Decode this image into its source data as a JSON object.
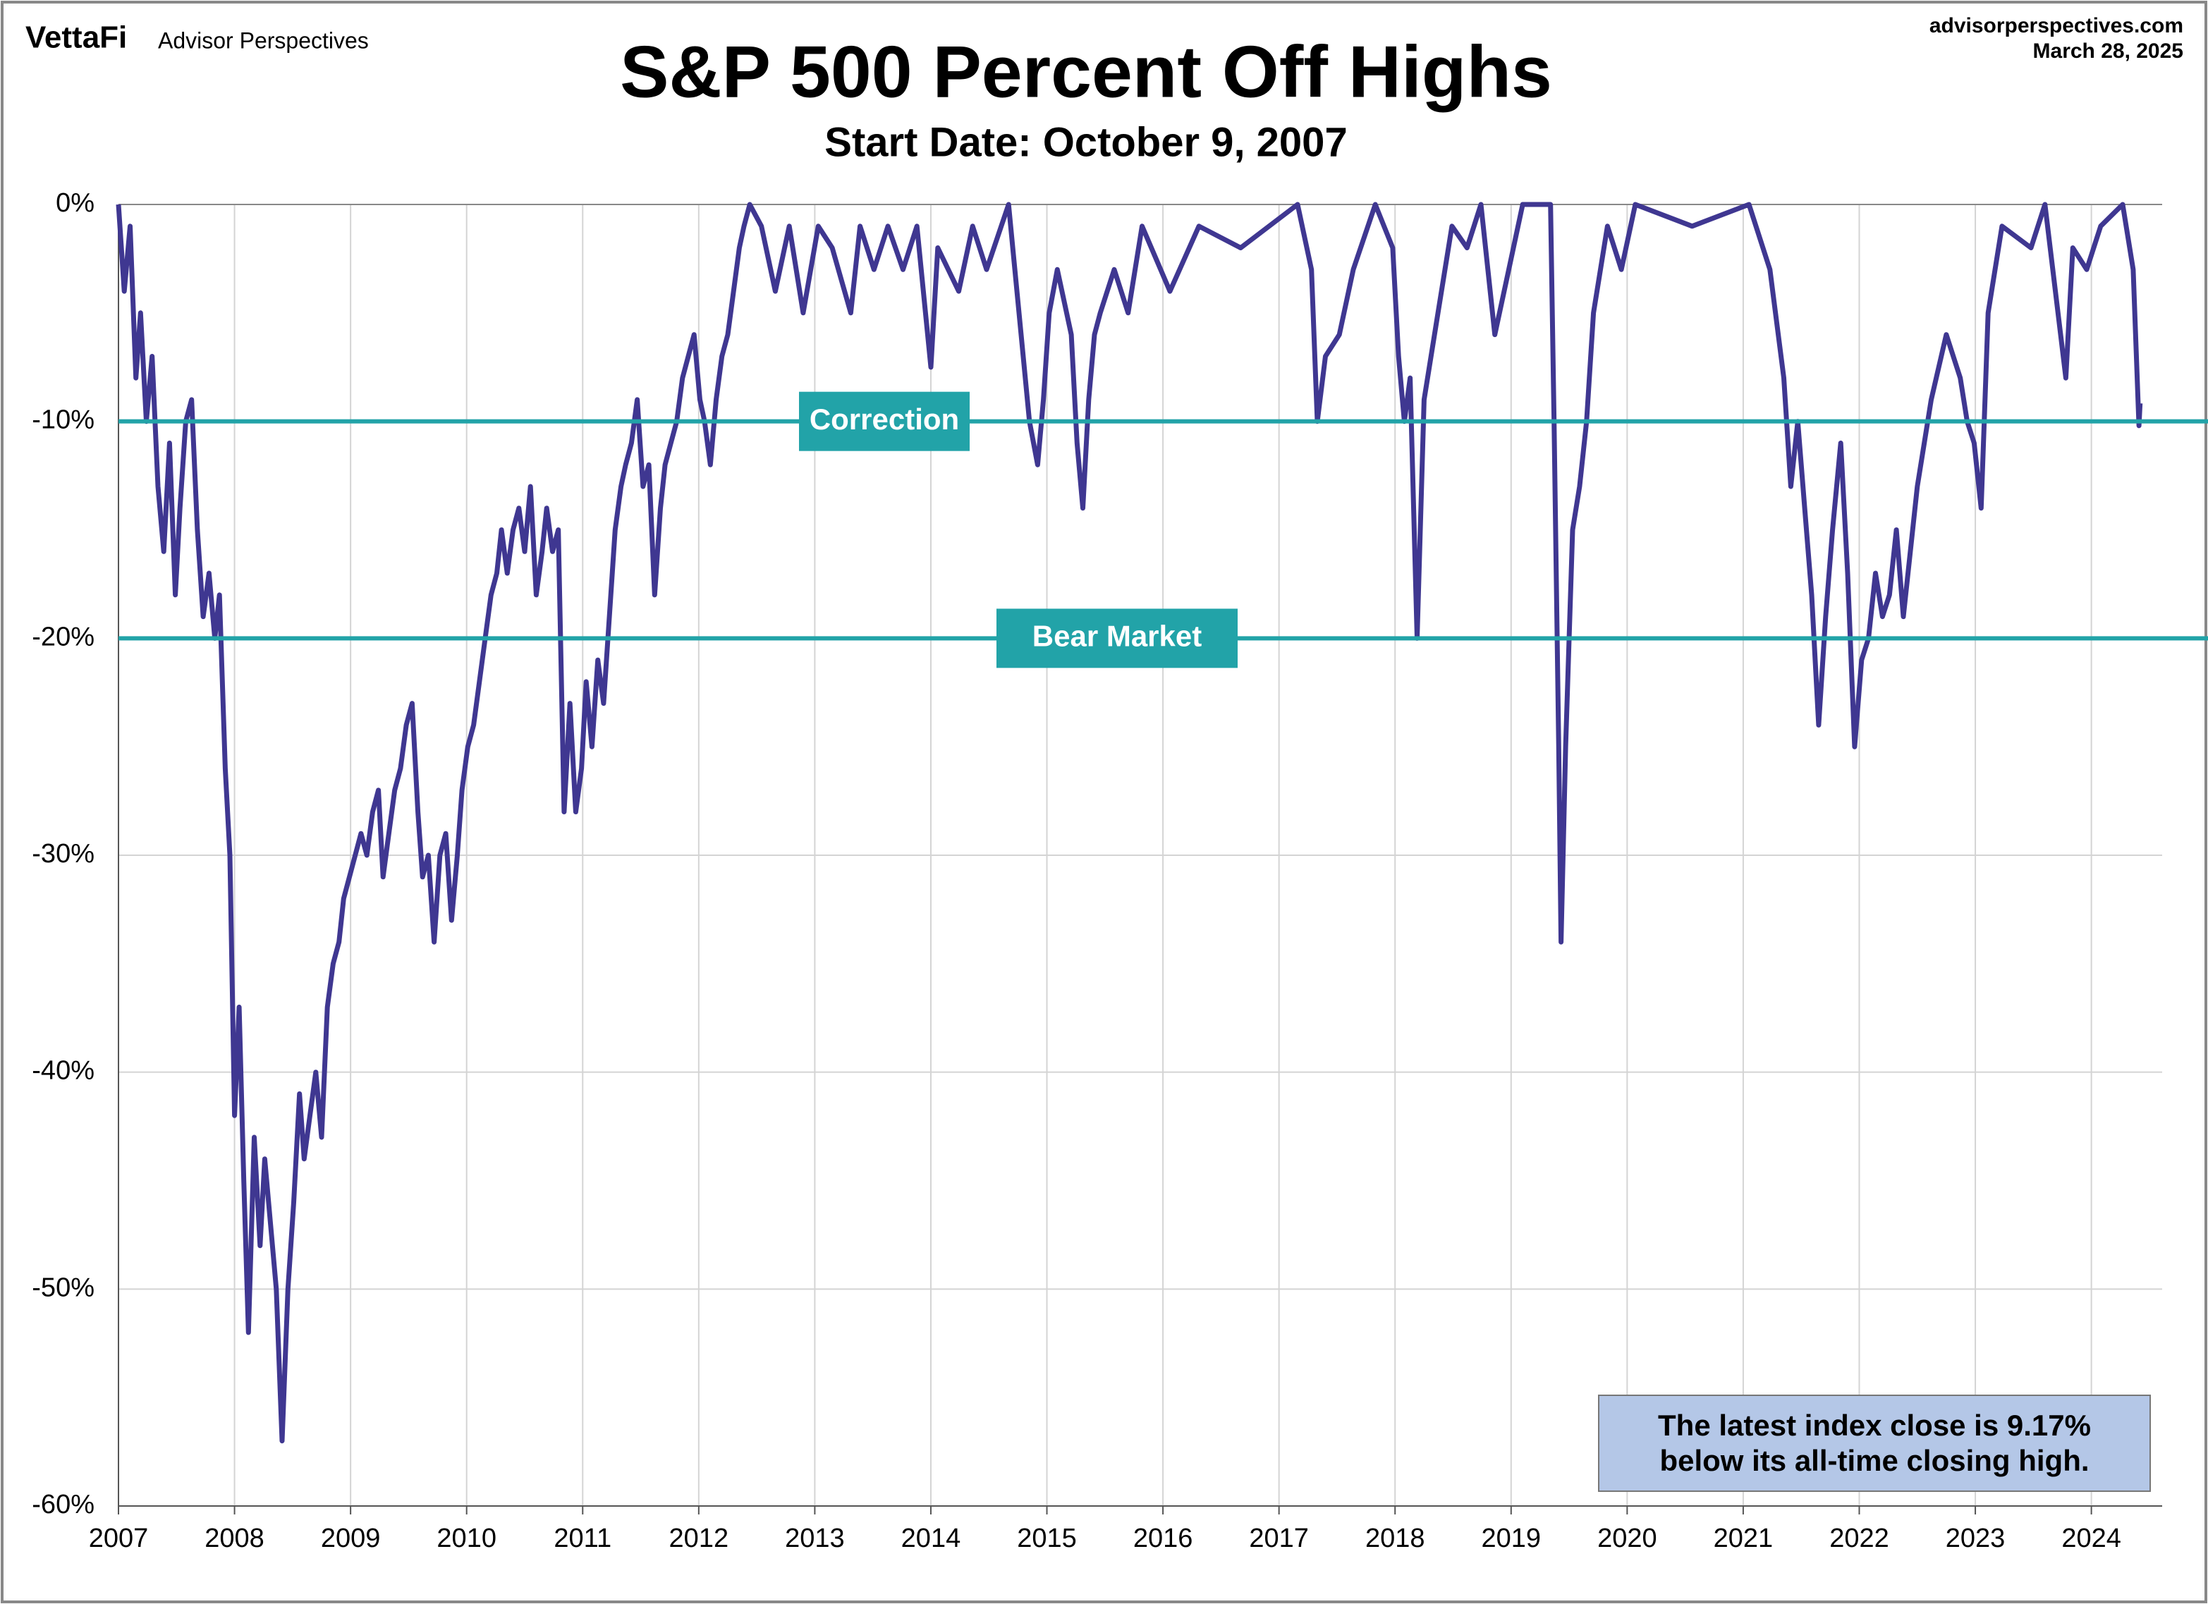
{
  "chart_data": {
    "type": "line",
    "title": "S&P 500 Percent Off Highs",
    "subtitle": "Start Date: October 9, 2007",
    "brand": "VettaFi",
    "publisher": "Advisor Perspectives",
    "source": "advisorperspectives.com",
    "date": "March 28, 2025",
    "note": "The latest index close is 9.17% below its all-time closing high.",
    "x": [
      2007.0,
      2007.05,
      2007.1,
      2007.15,
      2007.19,
      2007.24,
      2007.29,
      2007.34,
      2007.39,
      2007.44,
      2007.49,
      2007.53,
      2007.58,
      2007.63,
      2007.68,
      2007.73,
      2007.78,
      2007.83,
      2007.87,
      2007.92,
      2007.96,
      2008.0,
      2008.04,
      2008.08,
      2008.12,
      2008.17,
      2008.22,
      2008.26,
      2008.31,
      2008.36,
      2008.41,
      2008.46,
      2008.51,
      2008.56,
      2008.6,
      2008.65,
      2008.7,
      2008.75,
      2008.8,
      2008.85,
      2008.9,
      2008.94,
      2008.99,
      2009.04,
      2009.09,
      2009.14,
      2009.19,
      2009.24,
      2009.28,
      2009.33,
      2009.38,
      2009.43,
      2009.48,
      2009.53,
      2009.58,
      2009.62,
      2009.67,
      2009.72,
      2009.77,
      2009.82,
      2009.87,
      2009.92,
      2009.96,
      2010.01,
      2010.06,
      2010.11,
      2010.16,
      2010.21,
      2010.26,
      2010.3,
      2010.35,
      2010.4,
      2010.45,
      2010.5,
      2010.55,
      2010.6,
      2010.65,
      2010.69,
      2010.74,
      2010.79,
      2010.84,
      2010.89,
      2010.94,
      2010.99,
      2011.03,
      2011.08,
      2011.13,
      2011.18,
      2011.23,
      2011.28,
      2011.33,
      2011.37,
      2011.42,
      2011.47,
      2011.52,
      2011.57,
      2011.62,
      2011.67,
      2011.71,
      2011.76,
      2011.81,
      2011.86,
      2011.91,
      2011.96,
      2012.01,
      2012.05,
      2012.1,
      2012.15,
      2012.2,
      2012.25,
      2012.3,
      2012.35,
      2012.39,
      2012.44,
      2012.54,
      2012.66,
      2012.78,
      2012.9,
      2013.03,
      2013.15,
      2013.31,
      2013.39,
      2013.51,
      2013.63,
      2013.76,
      2013.88,
      2014.0,
      2014.06,
      2014.24,
      2014.36,
      2014.48,
      2014.67,
      2014.85,
      2014.92,
      2014.97,
      2015.02,
      2015.09,
      2015.21,
      2015.26,
      2015.31,
      2015.36,
      2015.41,
      2015.46,
      2015.58,
      2015.7,
      2015.82,
      2016.06,
      2016.31,
      2016.67,
      2017.16,
      2017.28,
      2017.33,
      2017.4,
      2017.52,
      2017.64,
      2017.83,
      2017.98,
      2018.03,
      2018.08,
      2018.13,
      2018.19,
      2018.25,
      2018.37,
      2018.49,
      2018.62,
      2018.74,
      2018.86,
      2018.98,
      2019.1,
      2019.34,
      2019.37,
      2019.41,
      2019.43,
      2019.47,
      2019.53,
      2019.59,
      2019.65,
      2019.71,
      2019.83,
      2019.95,
      2020.07,
      2020.56,
      2021.05,
      2021.23,
      2021.35,
      2021.41,
      2021.47,
      2021.53,
      2021.59,
      2021.65,
      2021.71,
      2021.77,
      2021.84,
      2021.9,
      2021.96,
      2022.02,
      2022.08,
      2022.14,
      2022.2,
      2022.26,
      2022.32,
      2022.38,
      2022.44,
      2022.5,
      2022.62,
      2022.75,
      2022.87,
      2022.93,
      2022.99,
      2023.05,
      2023.11,
      2023.23,
      2023.48,
      2023.6,
      2023.78,
      2023.84,
      2023.96,
      2024.08,
      2024.27,
      2024.36,
      2024.41,
      2024.42
    ],
    "series": [
      {
        "name": "S&P 500 Percent Off Highs",
        "color": "#3f3791",
        "values": [
          0,
          -4,
          -1,
          -8,
          -5,
          -10,
          -7,
          -13,
          -16,
          -11,
          -18,
          -14,
          -10,
          -9,
          -15,
          -19,
          -17,
          -20,
          -18,
          -26,
          -30,
          -42,
          -37,
          -45,
          -52,
          -43,
          -48,
          -44,
          -47,
          -50,
          -57,
          -50,
          -46,
          -41,
          -44,
          -42,
          -40,
          -43,
          -37,
          -35,
          -34,
          -32,
          -31,
          -30,
          -29,
          -30,
          -28,
          -27,
          -31,
          -29,
          -27,
          -26,
          -24,
          -23,
          -28,
          -31,
          -30,
          -34,
          -30,
          -29,
          -33,
          -30,
          -27,
          -25,
          -24,
          -22,
          -20,
          -18,
          -17,
          -15,
          -17,
          -15,
          -14,
          -16,
          -13,
          -18,
          -16,
          -14,
          -16,
          -15,
          -28,
          -23,
          -28,
          -26,
          -22,
          -25,
          -21,
          -23,
          -19,
          -15,
          -13,
          -12,
          -11,
          -9,
          -13,
          -12,
          -18,
          -14,
          -12,
          -11,
          -10,
          -8,
          -7,
          -6,
          -9,
          -10,
          -12,
          -9,
          -7,
          -6,
          -4,
          -2,
          -1,
          0,
          -1,
          -4,
          -1,
          -5,
          -1,
          -2,
          -5,
          -1,
          -3,
          -1,
          -3,
          -1,
          -7.5,
          -2,
          -4,
          -1,
          -3,
          0,
          -10,
          -12,
          -9,
          -5,
          -3,
          -6,
          -11,
          -14,
          -9,
          -6,
          -5,
          -3,
          -5,
          -1,
          -4,
          -1,
          -2,
          0,
          -3,
          -10,
          -7,
          -6,
          -3,
          0,
          -2,
          -7,
          -10,
          -8,
          -20,
          -9,
          -5,
          -1,
          -2,
          0,
          -6,
          -3,
          0,
          0,
          -10,
          -25,
          -34,
          -25,
          -15,
          -13,
          -10,
          -5,
          -1,
          -3,
          0,
          -1,
          0,
          -3,
          -8,
          -13,
          -10,
          -14,
          -18,
          -24,
          -19,
          -15,
          -11,
          -17,
          -25,
          -21,
          -20,
          -17,
          -19,
          -18,
          -15,
          -19,
          -16,
          -13,
          -9,
          -6,
          -8,
          -10,
          -11,
          -14,
          -5,
          -1,
          -2,
          0,
          -8,
          -2,
          -3,
          -1,
          0,
          -3,
          -10.2,
          -9.17
        ]
      }
    ],
    "xlim": [
      2007,
      2024.61
    ],
    "xticks": [
      2007,
      2008,
      2009,
      2010,
      2011,
      2012,
      2013,
      2014,
      2015,
      2016,
      2017,
      2018,
      2019,
      2020,
      2021,
      2022,
      2023,
      2024
    ],
    "ylim": [
      -60,
      0
    ],
    "yticks": [
      {
        "value": 0,
        "label": "0%"
      },
      {
        "value": -10,
        "label": "-10%"
      },
      {
        "value": -20,
        "label": "-20%"
      },
      {
        "value": -30,
        "label": "-30%"
      },
      {
        "value": -40,
        "label": "-40%"
      },
      {
        "value": -50,
        "label": "-50%"
      },
      {
        "value": -60,
        "label": "-60%"
      }
    ],
    "grid": true,
    "reference_lines": [
      {
        "value": -10,
        "label": "Correction",
        "color": "#22a3a8"
      },
      {
        "value": -20,
        "label": "Bear Market",
        "color": "#22a3a8"
      }
    ]
  }
}
